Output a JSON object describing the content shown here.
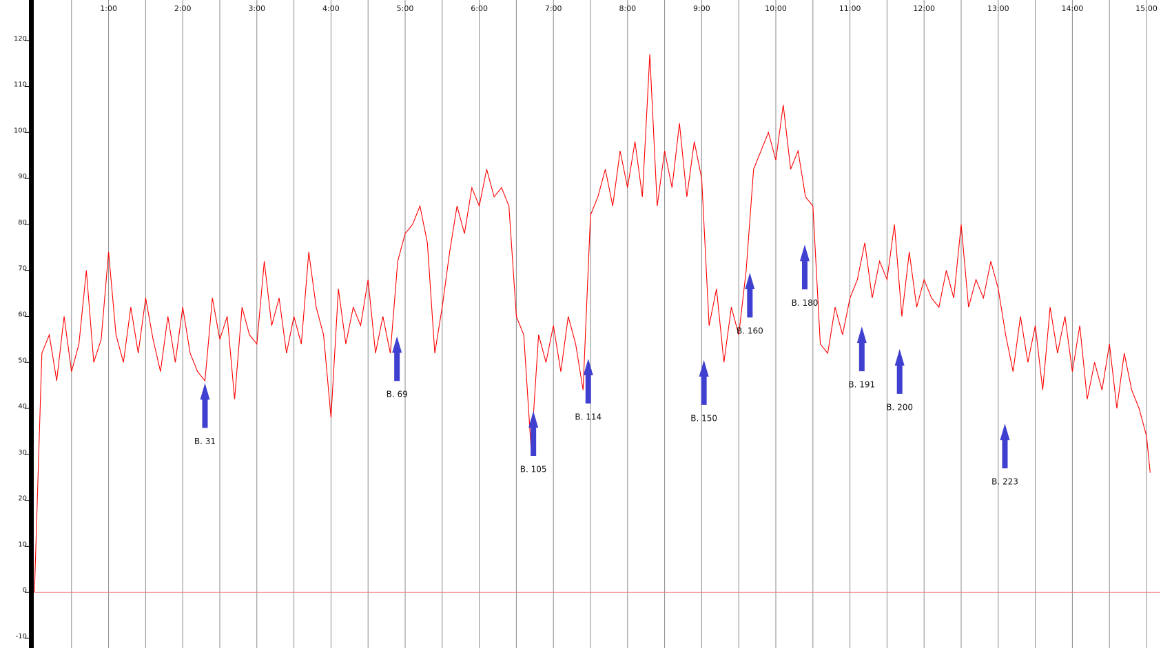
{
  "chart_data": {
    "type": "line",
    "color": "#ff0000",
    "grid": true,
    "zero_line_color": "#f08080",
    "annotation_color": "#4040d0",
    "x": [
      0,
      0.1,
      0.2,
      0.3,
      0.4,
      0.5,
      0.6,
      0.7,
      0.8,
      0.9,
      1.0,
      1.1,
      1.2,
      1.3,
      1.4,
      1.5,
      1.6,
      1.7,
      1.8,
      1.9,
      2.0,
      2.1,
      2.2,
      2.3,
      2.4,
      2.5,
      2.6,
      2.7,
      2.8,
      2.9,
      3.0,
      3.1,
      3.2,
      3.3,
      3.4,
      3.5,
      3.6,
      3.7,
      3.8,
      3.9,
      4.0,
      4.1,
      4.2,
      4.3,
      4.4,
      4.5,
      4.6,
      4.7,
      4.8,
      4.9,
      5.0,
      5.1,
      5.2,
      5.3,
      5.4,
      5.5,
      5.6,
      5.7,
      5.8,
      5.9,
      6.0,
      6.1,
      6.2,
      6.3,
      6.4,
      6.5,
      6.6,
      6.7,
      6.8,
      6.9,
      7.0,
      7.1,
      7.2,
      7.3,
      7.4,
      7.5,
      7.6,
      7.7,
      7.8,
      7.9,
      8.0,
      8.1,
      8.2,
      8.3,
      8.4,
      8.5,
      8.6,
      8.7,
      8.8,
      8.9,
      9.0,
      9.1,
      9.2,
      9.3,
      9.4,
      9.5,
      9.6,
      9.7,
      9.8,
      9.9,
      10.0,
      10.1,
      10.2,
      10.3,
      10.4,
      10.5,
      10.6,
      10.7,
      10.8,
      10.9,
      11.0,
      11.1,
      11.2,
      11.3,
      11.4,
      11.5,
      11.6,
      11.7,
      11.8,
      11.9,
      12.0,
      12.1,
      12.2,
      12.3,
      12.4,
      12.5,
      12.6,
      12.7,
      12.8,
      12.9,
      13.0,
      13.1,
      13.2,
      13.3,
      13.4,
      13.5,
      13.6,
      13.7,
      13.8,
      13.9,
      14.0,
      14.1,
      14.2,
      14.3,
      14.4,
      14.5,
      14.6,
      14.7,
      14.8,
      14.9,
      15.0,
      15.05
    ],
    "values": [
      0,
      52,
      56,
      46,
      60,
      48,
      54,
      70,
      50,
      55,
      74,
      56,
      50,
      62,
      52,
      64,
      55,
      48,
      60,
      50,
      62,
      52,
      48,
      46,
      64,
      55,
      60,
      42,
      62,
      56,
      54,
      72,
      58,
      64,
      52,
      60,
      54,
      74,
      62,
      56,
      38,
      66,
      54,
      62,
      58,
      68,
      52,
      60,
      52,
      72,
      78,
      80,
      84,
      76,
      52,
      62,
      74,
      84,
      78,
      88,
      84,
      92,
      86,
      88,
      84,
      60,
      56,
      31,
      56,
      50,
      58,
      48,
      60,
      54,
      44,
      82,
      86,
      92,
      84,
      96,
      88,
      98,
      86,
      117,
      84,
      96,
      88,
      102,
      86,
      98,
      90,
      58,
      66,
      50,
      62,
      56,
      70,
      92,
      96,
      100,
      94,
      106,
      92,
      96,
      86,
      84,
      54,
      52,
      62,
      56,
      64,
      68,
      76,
      64,
      72,
      68,
      80,
      60,
      74,
      62,
      68,
      64,
      62,
      70,
      64,
      80,
      62,
      68,
      64,
      72,
      66,
      56,
      48,
      60,
      50,
      58,
      44,
      62,
      52,
      60,
      48,
      58,
      42,
      50,
      44,
      54,
      40,
      52,
      44,
      40,
      34,
      26
    ],
    "xlim": [
      0,
      15
    ],
    "xticks": [
      {
        "value": 1,
        "label": "1:00"
      },
      {
        "value": 2,
        "label": "2:00"
      },
      {
        "value": 3,
        "label": "3:00"
      },
      {
        "value": 4,
        "label": "4:00"
      },
      {
        "value": 5,
        "label": "5:00"
      },
      {
        "value": 6,
        "label": "6:00"
      },
      {
        "value": 7,
        "label": "7:00"
      },
      {
        "value": 8,
        "label": "8:00"
      },
      {
        "value": 9,
        "label": "9:00"
      },
      {
        "value": 10,
        "label": "10:00"
      },
      {
        "value": 11,
        "label": "11:00"
      },
      {
        "value": 12,
        "label": "12:00"
      },
      {
        "value": 13,
        "label": "13:00"
      },
      {
        "value": 14,
        "label": "14:00"
      },
      {
        "value": 15,
        "label": "15:00"
      }
    ],
    "xminorticks": [
      0.5,
      1.5,
      2.5,
      3.5,
      4.5,
      5.5,
      6.5,
      7.5,
      8.5,
      9.5,
      10.5,
      11.5,
      12.5,
      13.5,
      14.5
    ],
    "ylim": [
      -12.1,
      128.8
    ],
    "yticks": [
      -10,
      0,
      10,
      20,
      30,
      40,
      50,
      60,
      70,
      80,
      90,
      100,
      110,
      120
    ],
    "annotations": [
      {
        "text": "B. 31",
        "x": 2.3,
        "y": 45.5
      },
      {
        "text": "B. 69",
        "x": 4.89,
        "y": 55.7
      },
      {
        "text": "B. 105",
        "x": 6.73,
        "y": 39.4
      },
      {
        "text": "B. 114",
        "x": 7.47,
        "y": 50.8
      },
      {
        "text": "B. 150",
        "x": 9.03,
        "y": 50.5
      },
      {
        "text": "B. 160",
        "x": 9.65,
        "y": 69.5
      },
      {
        "text": "B. 180",
        "x": 10.39,
        "y": 75.6
      },
      {
        "text": "B. 191",
        "x": 11.16,
        "y": 57.8
      },
      {
        "text": "B. 200",
        "x": 11.67,
        "y": 52.9
      },
      {
        "text": "B. 223",
        "x": 13.09,
        "y": 36.7
      }
    ]
  }
}
